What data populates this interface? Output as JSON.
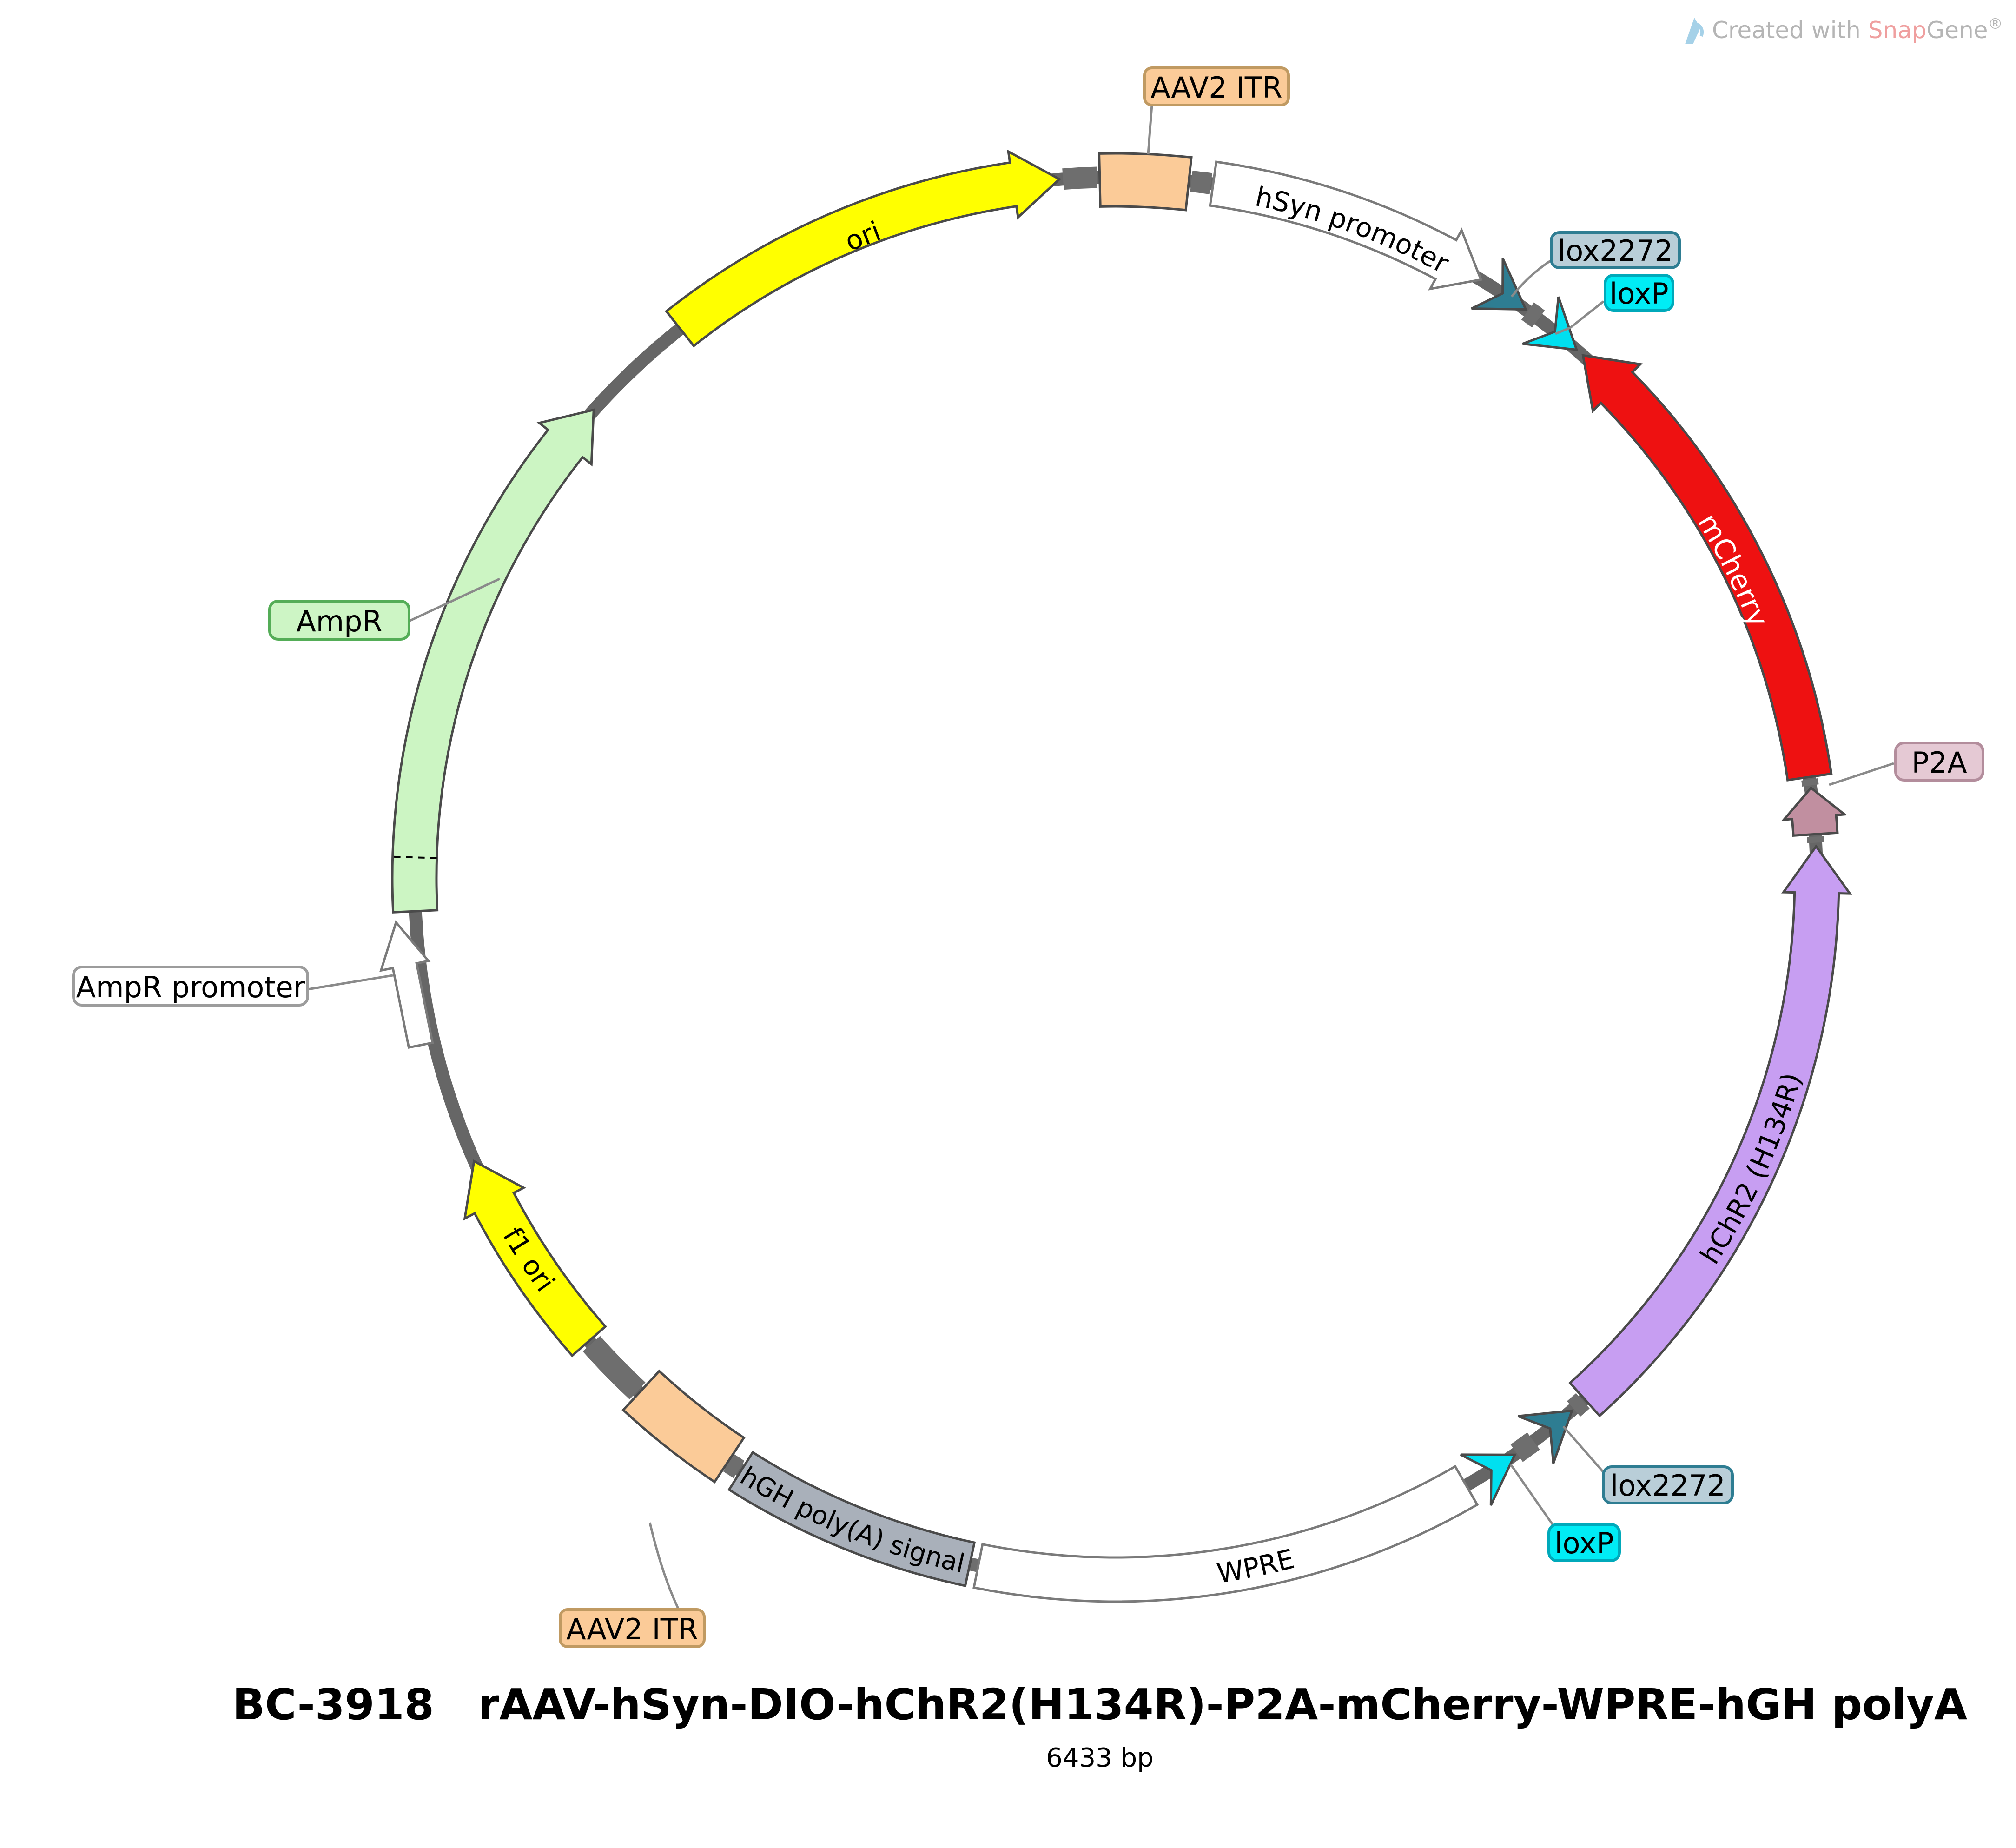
{
  "watermark": {
    "created_with": "Created with ",
    "brand_snap": "Snap",
    "brand_gene": "Gene",
    "registered": "®",
    "icon_color": "#a5d1e8",
    "text_color": "#b5b5b5",
    "snap_color": "#ef9f9f"
  },
  "footer": {
    "catalog_id": "BC-3918",
    "plasmid_name": "rAAV-hSyn-DIO-hChR2(H134R)-P2A-mCherry-WPRE-hGH polyA",
    "size_label": "6433 bp"
  },
  "colors": {
    "backbone": "#666666",
    "connector": "#6e6e6e"
  },
  "plasmid": {
    "features": {
      "itr_top": {
        "label": "AAV2 ITR",
        "color": "#fbcb98",
        "box_fill": "#fbcb98",
        "box_border": "#c09a62"
      },
      "hsyn": {
        "label": "hSyn promoter",
        "color": "#ffffff"
      },
      "lox2272_a": {
        "label": "lox2272",
        "color": "#2e7d92",
        "box_fill": "#b9ced8",
        "box_border": "#2e7d92"
      },
      "loxp_a": {
        "label": "loxP",
        "color": "#00e0f0",
        "box_fill": "#00ecf5",
        "box_border": "#00a9ba"
      },
      "mcherry": {
        "label": "mCherry",
        "color": "#ee1111"
      },
      "p2a": {
        "label": "P2A",
        "color": "#c18fa0",
        "box_fill": "#e5c9d4",
        "box_border": "#b38d9c"
      },
      "hchr2": {
        "label": "hChR2 (H134R)",
        "color": "#c79ef2"
      },
      "lox2272_b": {
        "label": "lox2272",
        "color": "#2e7d92",
        "box_fill": "#b9ced8",
        "box_border": "#2e7d92"
      },
      "loxp_b": {
        "label": "loxP",
        "color": "#00e0f0",
        "box_fill": "#00ecf5",
        "box_border": "#00a9ba"
      },
      "wpre": {
        "label": "WPRE",
        "color": "#ffffff"
      },
      "hgh_polya": {
        "label": "hGH poly(A) signal",
        "color": "#a9b0ba"
      },
      "itr_bottom": {
        "label": "AAV2 ITR",
        "color": "#fbcb98",
        "box_fill": "#fbcb98",
        "box_border": "#c09a62"
      },
      "f1_ori": {
        "label": "f1 ori",
        "color": "#ffff00"
      },
      "ampr_promoter": {
        "label": "AmpR promoter",
        "color": "#ffffff",
        "box_fill": "#ffffff",
        "box_border": "#9c9c9c"
      },
      "ampr": {
        "label": "AmpR",
        "color": "#ccf5c3",
        "box_fill": "#cdf5c5",
        "box_border": "#54ad57"
      },
      "ori": {
        "label": "ori",
        "color": "#ffff00"
      }
    }
  }
}
